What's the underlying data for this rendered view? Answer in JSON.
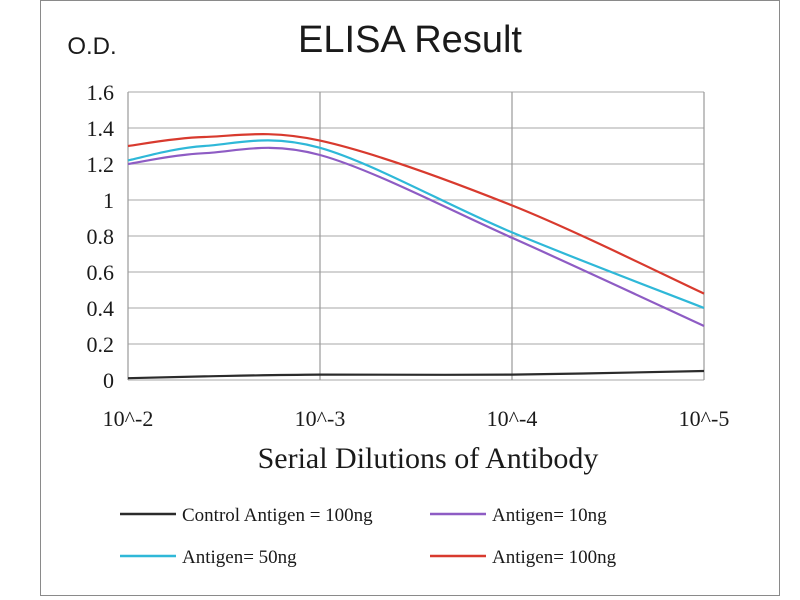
{
  "chart_data": {
    "type": "line",
    "title": "ELISA Result",
    "ylabel": "O.D.",
    "xlabel": "Serial Dilutions  of Antibody",
    "ylim": [
      0,
      1.6
    ],
    "ytick_labels": [
      "0",
      "0.2",
      "0.4",
      "0.6",
      "0.8",
      "1",
      "1.2",
      "1.4",
      "1.6"
    ],
    "xtick_labels": [
      "10^-2",
      "10^-3",
      "10^-4",
      "10^-5"
    ],
    "x": [
      0.01,
      0.004,
      0.001,
      0.0001,
      1e-05
    ],
    "grid": true,
    "legend_position": "bottom",
    "series": [
      {
        "name": "Control Antigen = 100ng",
        "color": "#2b2b2b",
        "values": [
          0.01,
          0.02,
          0.03,
          0.03,
          0.05
        ]
      },
      {
        "name": "Antigen= 10ng",
        "color": "#8e5cc4",
        "values": [
          1.2,
          1.26,
          1.25,
          0.79,
          0.3
        ]
      },
      {
        "name": "Antigen= 50ng",
        "color": "#2fb8d8",
        "values": [
          1.22,
          1.3,
          1.29,
          0.82,
          0.4
        ]
      },
      {
        "name": "Antigen= 100ng",
        "color": "#d83a2e",
        "values": [
          1.3,
          1.35,
          1.33,
          0.97,
          0.48
        ]
      }
    ]
  }
}
